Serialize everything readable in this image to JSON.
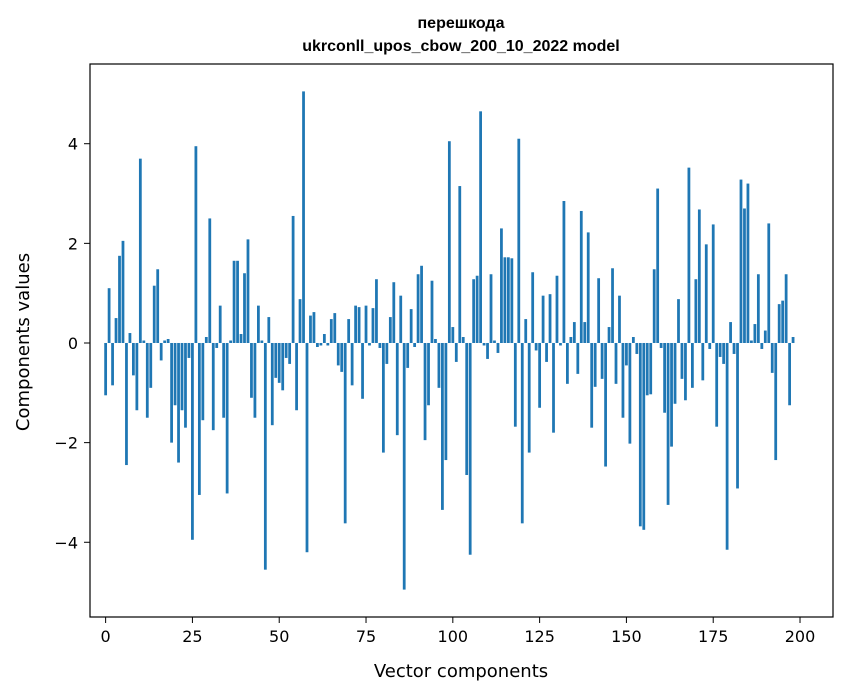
{
  "chart_data": {
    "type": "bar",
    "title_line1": "перешкода",
    "title_line2": "ukrconll_upos_cbow_200_10_2022 model",
    "xlabel": "Vector components",
    "ylabel": "Components values",
    "xlim": [
      -4.5,
      209.5
    ],
    "ylim": [
      -5.5,
      5.6
    ],
    "xticks": [
      0,
      25,
      50,
      75,
      100,
      125,
      150,
      175,
      200
    ],
    "xtick_labels": [
      "0",
      "25",
      "50",
      "75",
      "100",
      "125",
      "150",
      "175",
      "200"
    ],
    "yticks": [
      -4,
      -2,
      0,
      2,
      4
    ],
    "ytick_labels": [
      "−4",
      "−2",
      "0",
      "2",
      "4"
    ],
    "bar_color": "#1f77b4",
    "values": [
      -1.05,
      1.1,
      -0.85,
      0.5,
      1.75,
      2.05,
      -2.45,
      0.2,
      -0.65,
      -1.35,
      3.7,
      0.05,
      -1.5,
      -0.9,
      1.15,
      1.48,
      -0.35,
      0.05,
      0.08,
      -2.0,
      -1.25,
      -2.4,
      -1.35,
      -1.7,
      -0.3,
      -3.95,
      3.95,
      -3.05,
      -1.55,
      0.12,
      2.5,
      -1.75,
      -0.1,
      0.75,
      -1.5,
      -3.02,
      0.05,
      1.65,
      1.65,
      0.18,
      1.4,
      2.08,
      -1.1,
      -1.5,
      0.75,
      0.05,
      -4.55,
      0.52,
      -1.65,
      -0.7,
      -0.8,
      -0.95,
      -0.3,
      -0.42,
      2.55,
      -1.35,
      0.88,
      5.05,
      -4.2,
      0.55,
      0.62,
      -0.08,
      -0.05,
      0.18,
      -0.05,
      0.48,
      0.6,
      -0.45,
      -0.58,
      -3.62,
      0.48,
      -0.85,
      0.75,
      0.72,
      -1.12,
      0.75,
      -0.05,
      0.7,
      1.28,
      -0.1,
      -2.2,
      -0.42,
      0.52,
      1.22,
      -1.85,
      0.95,
      -4.95,
      -0.5,
      0.68,
      -0.08,
      1.38,
      1.55,
      -1.95,
      -1.25,
      1.25,
      0.08,
      -0.9,
      -3.35,
      -2.35,
      4.05,
      0.32,
      -0.38,
      3.15,
      0.12,
      -2.65,
      -4.25,
      1.28,
      1.35,
      4.65,
      -0.05,
      -0.32,
      1.38,
      0.05,
      -0.2,
      2.3,
      1.72,
      1.72,
      1.7,
      -1.68,
      4.1,
      -3.62,
      0.48,
      -2.2,
      1.42,
      -0.15,
      -1.3,
      0.95,
      -0.38,
      0.98,
      -1.8,
      1.35,
      -0.05,
      2.85,
      -0.82,
      0.12,
      0.42,
      -0.62,
      2.65,
      0.42,
      2.22,
      -1.7,
      -0.88,
      1.3,
      -0.72,
      -2.48,
      0.32,
      1.5,
      -0.82,
      0.95,
      -1.5,
      -0.45,
      -2.02,
      0.12,
      -0.22,
      -3.68,
      -3.75,
      -1.05,
      -1.03,
      1.48,
      3.1,
      -0.1,
      -1.4,
      -3.25,
      -2.08,
      -1.22,
      0.88,
      -0.72,
      -1.15,
      3.52,
      -0.9,
      1.28,
      2.68,
      -0.75,
      1.98,
      -0.12,
      2.38,
      -1.68,
      -0.28,
      -0.42,
      -4.15,
      0.42,
      -0.22,
      -2.92,
      3.28,
      2.7,
      3.2,
      0.05,
      0.38,
      1.38,
      -0.12,
      0.25,
      2.4,
      -0.6,
      -2.35,
      0.78,
      0.85,
      1.38,
      -1.25,
      0.12,
      0.0
    ]
  }
}
